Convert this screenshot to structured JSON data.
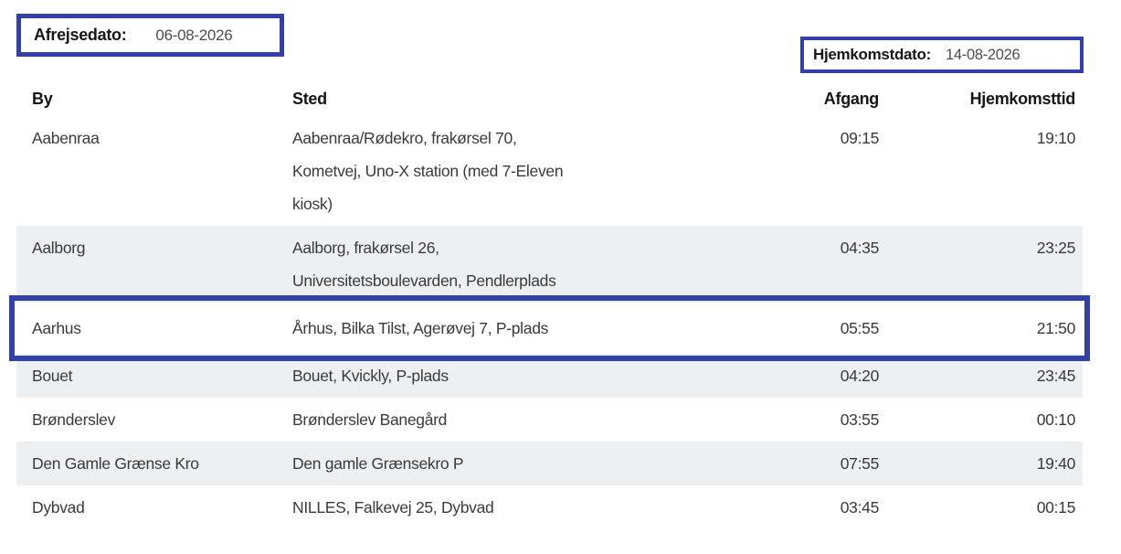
{
  "colors": {
    "accent": "#3340a8",
    "row_shaded": "#edf0f2"
  },
  "departure": {
    "label": "Afrejsedato:",
    "value": "06-08-2026"
  },
  "homecoming": {
    "label": "Hjemkomstdato:",
    "value": "14-08-2026"
  },
  "table": {
    "columns": {
      "by": "By",
      "sted": "Sted",
      "afgang": "Afgang",
      "hjemkomsttid": "Hjemkomsttid"
    },
    "rows": [
      {
        "by": "Aabenraa",
        "sted_lines": [
          "Aabenraa/Rødekro, frakørsel 70,",
          "Kometvej, Uno-X station (med 7-Eleven",
          "kiosk)"
        ],
        "afgang": "09:15",
        "hjemkomsttid": "19:10",
        "shaded": false,
        "highlighted": false
      },
      {
        "by": "Aalborg",
        "sted_lines": [
          "Aalborg, frakørsel 26,",
          "Universitetsboulevarden, Pendlerplads"
        ],
        "afgang": "04:35",
        "hjemkomsttid": "23:25",
        "shaded": true,
        "highlighted": false
      },
      {
        "by": "Aarhus",
        "sted_lines": [
          "Århus, Bilka Tilst, Agerøvej 7, P-plads"
        ],
        "afgang": "05:55",
        "hjemkomsttid": "21:50",
        "shaded": false,
        "highlighted": true
      },
      {
        "by": "Bouet",
        "sted_lines": [
          "Bouet, Kvickly, P-plads"
        ],
        "afgang": "04:20",
        "hjemkomsttid": "23:45",
        "shaded": true,
        "highlighted": false
      },
      {
        "by": "Brønderslev",
        "sted_lines": [
          "Brønderslev Banegård"
        ],
        "afgang": "03:55",
        "hjemkomsttid": "00:10",
        "shaded": false,
        "highlighted": false
      },
      {
        "by": "Den Gamle Grænse Kro",
        "sted_lines": [
          "Den gamle Grænsekro P"
        ],
        "afgang": "07:55",
        "hjemkomsttid": "19:40",
        "shaded": true,
        "highlighted": false
      },
      {
        "by": "Dybvad",
        "sted_lines": [
          "NILLES, Falkevej 25, Dybvad"
        ],
        "afgang": "03:45",
        "hjemkomsttid": "00:15",
        "shaded": false,
        "highlighted": false
      }
    ]
  }
}
